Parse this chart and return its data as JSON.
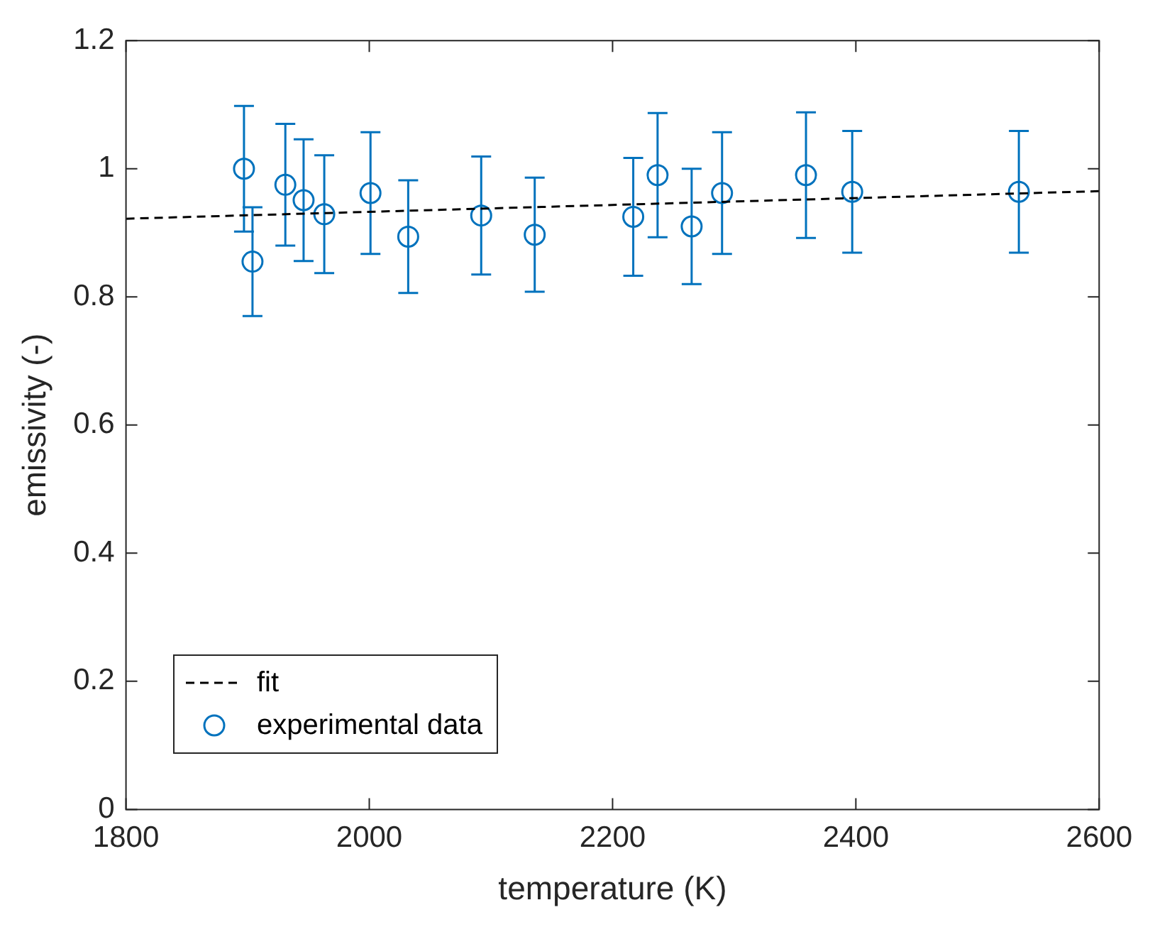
{
  "chart_data": {
    "type": "scatter",
    "xlabel": "temperature (K)",
    "ylabel": "emissivity (-)",
    "xlim": [
      1800,
      2600
    ],
    "xticks": [
      1800,
      2000,
      2200,
      2400,
      2600
    ],
    "ylim": [
      0,
      1.2
    ],
    "yticks": [
      0,
      0.2,
      0.4,
      0.6,
      0.8,
      1,
      1.2
    ],
    "legend": "bottom left",
    "series": [
      {
        "name": "fit",
        "type": "line",
        "color": "#000000",
        "line_style": "dashed",
        "marker": "none",
        "x": [
          1800,
          2600
        ],
        "values": [
          0.922,
          0.965
        ]
      },
      {
        "name": "experimental data",
        "type": "scatter",
        "color": "#0072bd",
        "marker": "circle",
        "x": [
          1897,
          1904,
          1931,
          1946,
          1963,
          2001,
          2032,
          2092,
          2136,
          2217,
          2237,
          2265,
          2290,
          2359,
          2397,
          2534
        ],
        "values": [
          1.0,
          0.855,
          0.975,
          0.951,
          0.929,
          0.962,
          0.894,
          0.927,
          0.897,
          0.925,
          0.99,
          0.91,
          0.962,
          0.99,
          0.964,
          0.964
        ],
        "errors": [
          0.098,
          0.085,
          0.095,
          0.095,
          0.092,
          0.095,
          0.088,
          0.092,
          0.089,
          0.092,
          0.097,
          0.09,
          0.095,
          0.098,
          0.095,
          0.095
        ]
      }
    ]
  }
}
